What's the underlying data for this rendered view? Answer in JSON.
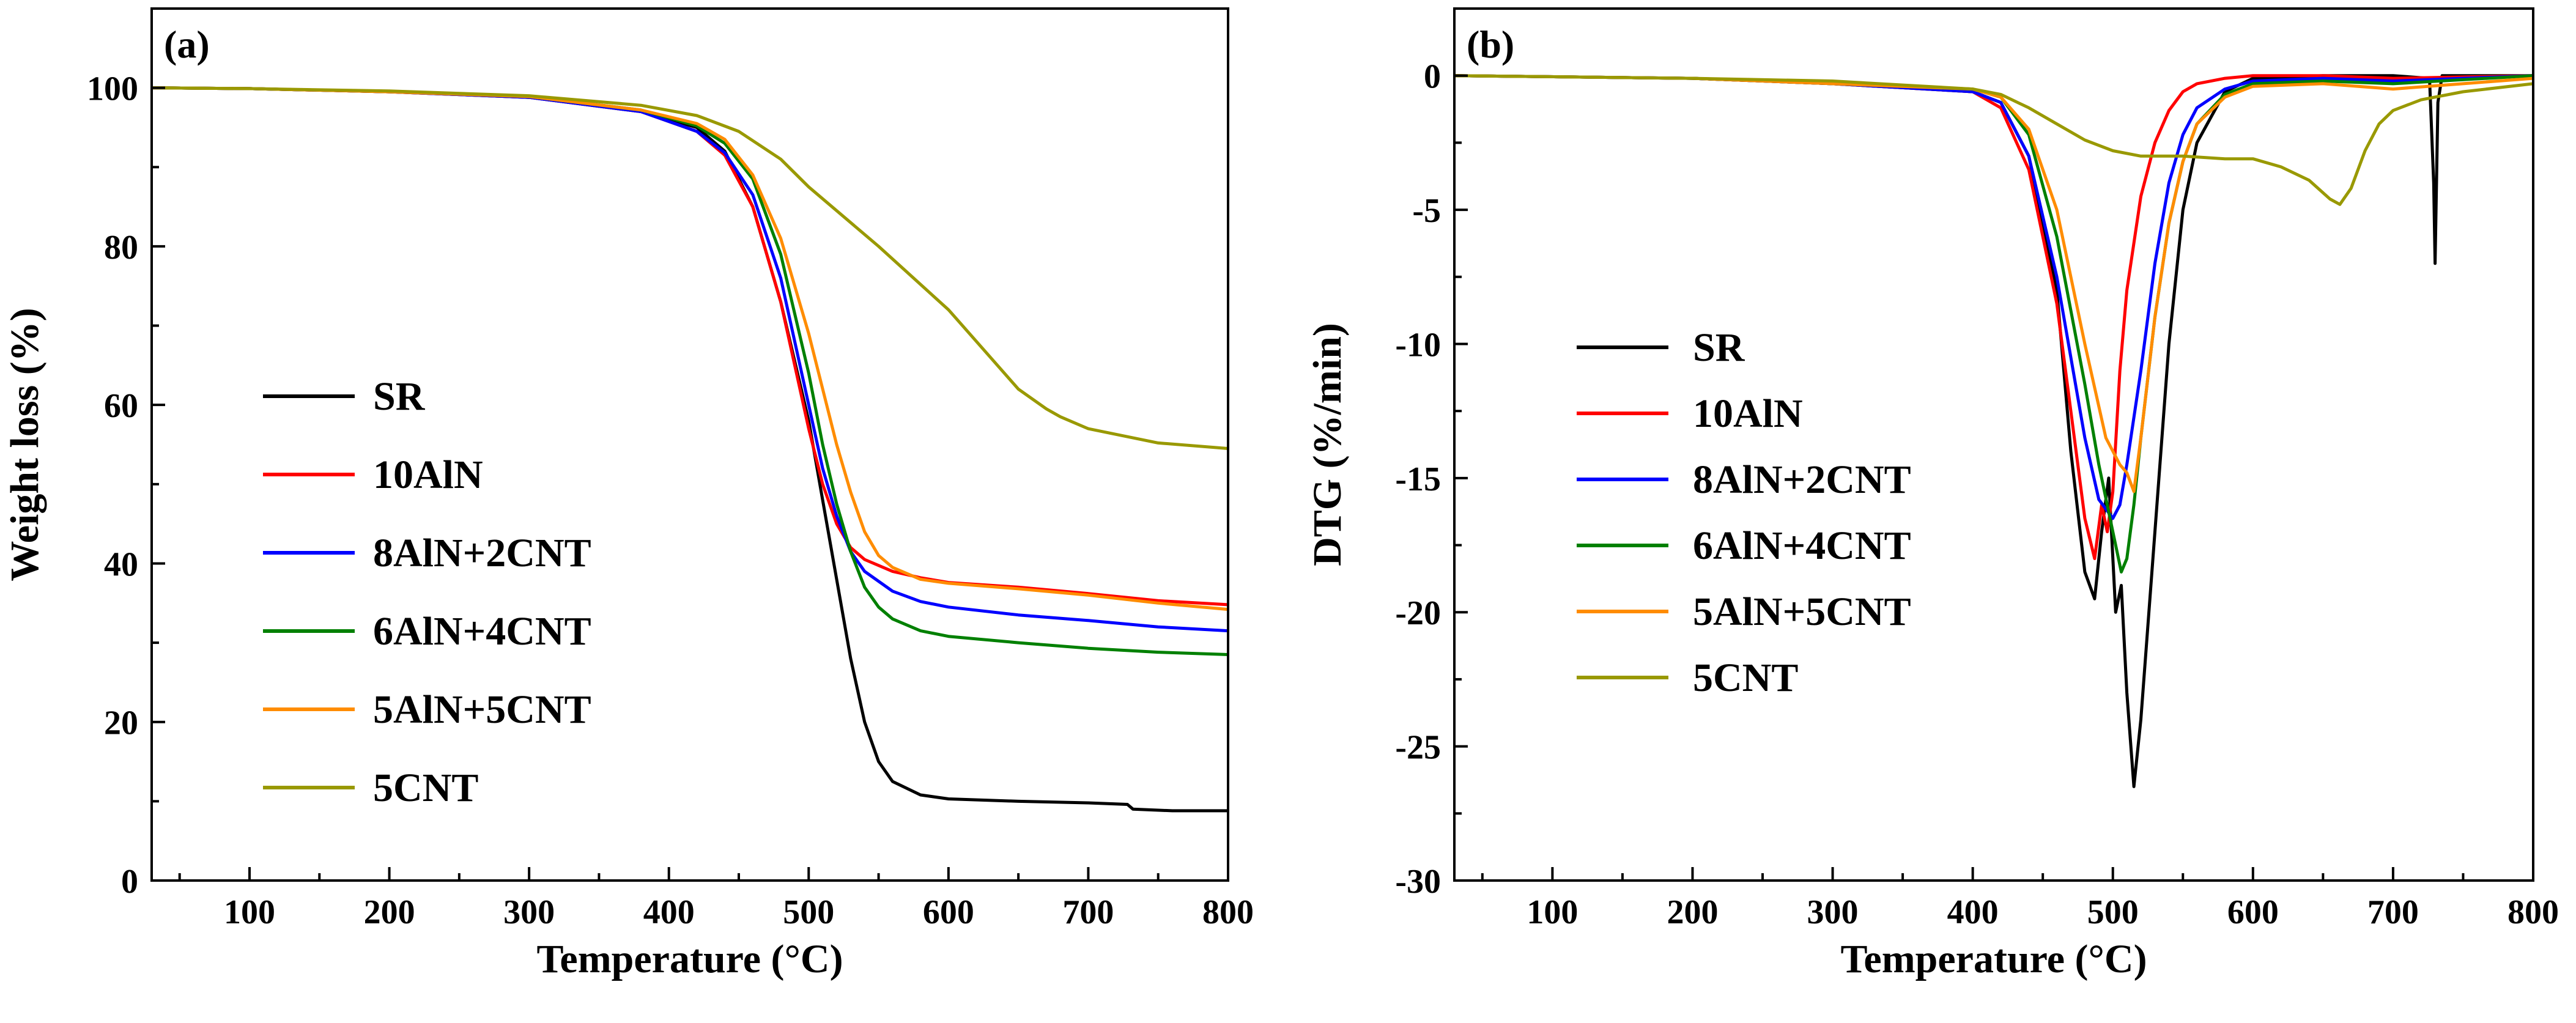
{
  "chart_data": [
    {
      "id": "a",
      "type": "line",
      "panel_label": "(a)",
      "xlabel": "Temperature (°C)",
      "ylabel": "Weight loss (%)",
      "xlim": [
        30,
        800
      ],
      "ylim": [
        0,
        110
      ],
      "xticks": [
        100,
        200,
        300,
        400,
        500,
        600,
        700,
        800
      ],
      "yticks": [
        0,
        20,
        40,
        60,
        80,
        100
      ],
      "xtick_labels": [
        "100",
        "200",
        "300",
        "400",
        "500",
        "600",
        "700",
        "800"
      ],
      "ytick_labels": [
        "0",
        "20",
        "40",
        "60",
        "80",
        "100"
      ],
      "legend_position": "center-left",
      "series": [
        {
          "name": "SR",
          "color": "#000000",
          "x": [
            30,
            100,
            200,
            300,
            380,
            420,
            440,
            460,
            480,
            500,
            510,
            520,
            530,
            540,
            550,
            560,
            580,
            600,
            650,
            700,
            728,
            732,
            760,
            800
          ],
          "y": [
            100,
            99.9,
            99.5,
            98.8,
            97.0,
            95.0,
            92.0,
            85.0,
            73.0,
            58.0,
            48.0,
            38.0,
            28.0,
            20.0,
            15.0,
            12.5,
            10.8,
            10.3,
            10.0,
            9.8,
            9.6,
            9.0,
            8.8,
            8.8
          ]
        },
        {
          "name": "10AlN",
          "color": "#ff0000",
          "x": [
            30,
            100,
            200,
            300,
            380,
            420,
            440,
            460,
            480,
            500,
            510,
            520,
            530,
            540,
            560,
            580,
            600,
            650,
            700,
            750,
            800
          ],
          "y": [
            100,
            99.9,
            99.5,
            98.8,
            97.0,
            94.5,
            91.5,
            85.0,
            73.0,
            57.0,
            50.0,
            45.0,
            42.0,
            40.5,
            39.0,
            38.2,
            37.6,
            37.0,
            36.2,
            35.3,
            34.8
          ]
        },
        {
          "name": "8AlN+2CNT",
          "color": "#0000ff",
          "x": [
            30,
            100,
            200,
            300,
            380,
            420,
            440,
            460,
            480,
            500,
            510,
            520,
            530,
            540,
            560,
            580,
            600,
            650,
            700,
            750,
            800
          ],
          "y": [
            100,
            99.9,
            99.5,
            98.8,
            97.0,
            94.5,
            91.8,
            86.5,
            76.0,
            60.0,
            52.0,
            46.0,
            41.5,
            39.0,
            36.5,
            35.2,
            34.5,
            33.5,
            32.8,
            32.0,
            31.5
          ]
        },
        {
          "name": "6AlN+4CNT",
          "color": "#008000",
          "x": [
            30,
            100,
            200,
            300,
            380,
            420,
            440,
            460,
            480,
            500,
            510,
            520,
            530,
            540,
            550,
            560,
            580,
            600,
            650,
            700,
            750,
            800
          ],
          "y": [
            100,
            99.9,
            99.5,
            98.9,
            97.2,
            95.2,
            93.0,
            88.5,
            79.0,
            64.0,
            55.0,
            47.5,
            41.5,
            37.0,
            34.5,
            33.0,
            31.5,
            30.8,
            30.0,
            29.3,
            28.8,
            28.5
          ]
        },
        {
          "name": "5AlN+5CNT",
          "color": "#ff8c00",
          "x": [
            30,
            100,
            200,
            300,
            380,
            420,
            440,
            460,
            480,
            500,
            520,
            530,
            540,
            550,
            560,
            580,
            600,
            650,
            700,
            750,
            800
          ],
          "y": [
            100,
            99.9,
            99.5,
            98.9,
            97.2,
            95.5,
            93.5,
            89.0,
            81.0,
            69.0,
            55.0,
            49.0,
            44.0,
            41.0,
            39.5,
            38.0,
            37.5,
            36.8,
            36.0,
            35.0,
            34.2
          ]
        },
        {
          "name": "5CNT",
          "color": "#999900",
          "x": [
            30,
            100,
            200,
            300,
            380,
            420,
            450,
            480,
            500,
            550,
            600,
            630,
            650,
            670,
            680,
            700,
            750,
            800
          ],
          "y": [
            100,
            99.9,
            99.6,
            99.0,
            97.8,
            96.5,
            94.5,
            91.0,
            87.5,
            80.0,
            72.0,
            66.0,
            62.0,
            59.5,
            58.5,
            57.0,
            55.2,
            54.5
          ]
        }
      ]
    },
    {
      "id": "b",
      "type": "line",
      "panel_label": "(b)",
      "xlabel": "Temperature (°C)",
      "ylabel": "DTG (%/min)",
      "xlim": [
        30,
        800
      ],
      "ylim": [
        -30,
        2.5
      ],
      "xticks": [
        100,
        200,
        300,
        400,
        500,
        600,
        700,
        800
      ],
      "yticks": [
        -30,
        -25,
        -20,
        -15,
        -10,
        -5,
        0
      ],
      "xtick_labels": [
        "100",
        "200",
        "300",
        "400",
        "500",
        "600",
        "700",
        "800"
      ],
      "ytick_labels": [
        "-30",
        "-25",
        "-20",
        "-15",
        "-10",
        "-5",
        "0"
      ],
      "legend_position": "center-left",
      "series": [
        {
          "name": "SR",
          "color": "#000000",
          "x": [
            30,
            200,
            300,
            400,
            420,
            440,
            460,
            470,
            480,
            487,
            492,
            497,
            502,
            506,
            510,
            515,
            520,
            530,
            540,
            550,
            560,
            580,
            600,
            650,
            700,
            726,
            729,
            730,
            732,
            735,
            800
          ],
          "y": [
            0,
            -0.1,
            -0.3,
            -0.6,
            -1.0,
            -3.0,
            -8.0,
            -14.0,
            -18.5,
            -19.5,
            -17.0,
            -15.0,
            -20.0,
            -19.0,
            -23.0,
            -26.5,
            -24.0,
            -17.0,
            -10.0,
            -5.0,
            -2.5,
            -0.6,
            -0.1,
            0,
            0,
            -0.1,
            -4.0,
            -7.0,
            -1.0,
            0,
            0
          ]
        },
        {
          "name": "10AlN",
          "color": "#ff0000",
          "x": [
            30,
            200,
            300,
            400,
            420,
            440,
            460,
            470,
            480,
            487,
            492,
            496,
            500,
            505,
            510,
            520,
            530,
            540,
            550,
            560,
            580,
            600,
            650,
            700,
            800
          ],
          "y": [
            0,
            -0.1,
            -0.3,
            -0.6,
            -1.2,
            -3.5,
            -8.5,
            -12.5,
            -16.5,
            -18.0,
            -16.0,
            -17.0,
            -15.5,
            -11.0,
            -8.0,
            -4.5,
            -2.5,
            -1.3,
            -0.6,
            -0.3,
            -0.1,
            0,
            0,
            -0.1,
            0
          ]
        },
        {
          "name": "8AlN+2CNT",
          "color": "#0000ff",
          "x": [
            30,
            200,
            300,
            400,
            420,
            440,
            460,
            480,
            490,
            500,
            505,
            510,
            520,
            530,
            540,
            550,
            560,
            580,
            600,
            650,
            700,
            800
          ],
          "y": [
            0,
            -0.1,
            -0.3,
            -0.6,
            -1.0,
            -3.0,
            -7.5,
            -13.5,
            -15.8,
            -16.5,
            -16.0,
            -14.5,
            -11.0,
            -7.0,
            -4.0,
            -2.2,
            -1.2,
            -0.5,
            -0.2,
            -0.1,
            -0.2,
            0
          ]
        },
        {
          "name": "6AlN+4CNT",
          "color": "#008000",
          "x": [
            30,
            200,
            300,
            400,
            420,
            440,
            460,
            480,
            490,
            500,
            506,
            510,
            515,
            520,
            530,
            540,
            550,
            560,
            580,
            600,
            650,
            700,
            800
          ],
          "y": [
            0,
            -0.1,
            -0.3,
            -0.5,
            -0.8,
            -2.2,
            -6.0,
            -11.5,
            -14.5,
            -17.0,
            -18.5,
            -18.0,
            -16.0,
            -13.5,
            -9.0,
            -5.5,
            -3.2,
            -1.8,
            -0.7,
            -0.3,
            -0.2,
            -0.3,
            0
          ]
        },
        {
          "name": "5AlN+5CNT",
          "color": "#ff8c00",
          "x": [
            30,
            200,
            300,
            400,
            420,
            440,
            460,
            480,
            495,
            505,
            510,
            515,
            520,
            530,
            540,
            550,
            560,
            580,
            600,
            650,
            700,
            800
          ],
          "y": [
            0,
            -0.1,
            -0.3,
            -0.5,
            -0.8,
            -2.0,
            -5.0,
            -10.0,
            -13.5,
            -14.5,
            -14.8,
            -15.5,
            -13.5,
            -9.0,
            -5.5,
            -3.2,
            -1.8,
            -0.8,
            -0.4,
            -0.3,
            -0.5,
            -0.1
          ]
        },
        {
          "name": "5CNT",
          "color": "#999900",
          "x": [
            30,
            200,
            300,
            400,
            420,
            440,
            460,
            480,
            500,
            520,
            550,
            580,
            600,
            620,
            640,
            655,
            662,
            670,
            680,
            690,
            700,
            720,
            750,
            800
          ],
          "y": [
            0,
            -0.1,
            -0.2,
            -0.5,
            -0.7,
            -1.2,
            -1.8,
            -2.4,
            -2.8,
            -3.0,
            -3.0,
            -3.1,
            -3.1,
            -3.4,
            -3.9,
            -4.6,
            -4.8,
            -4.2,
            -2.8,
            -1.8,
            -1.3,
            -0.9,
            -0.6,
            -0.3
          ]
        }
      ]
    }
  ]
}
